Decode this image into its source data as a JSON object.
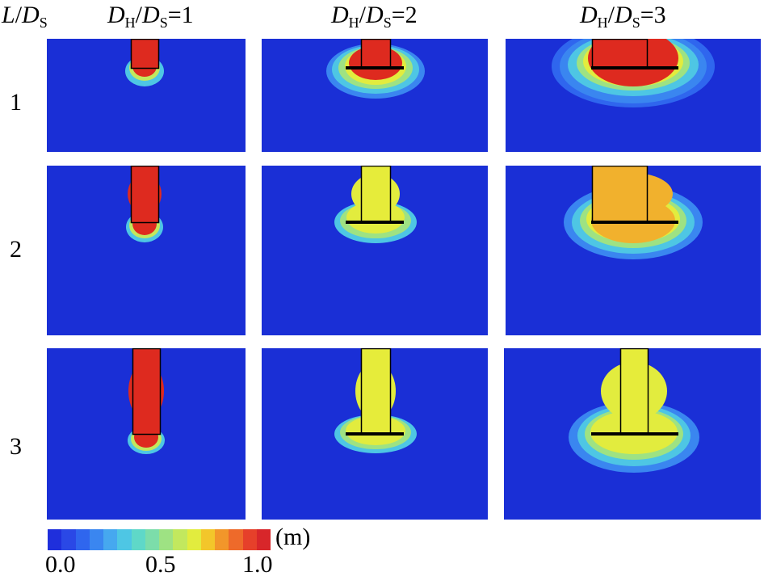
{
  "header": {
    "row_axis": {
      "var": "L",
      "sep": "/",
      "den": "D",
      "sub": "S"
    },
    "cols": [
      {
        "num": "D",
        "num_sub": "H",
        "den": "D",
        "den_sub": "S",
        "eq": "=1"
      },
      {
        "num": "D",
        "num_sub": "H",
        "den": "D",
        "den_sub": "S",
        "eq": "=2"
      },
      {
        "num": "D",
        "num_sub": "H",
        "den": "D",
        "den_sub": "S",
        "eq": "=3"
      }
    ]
  },
  "rows": [
    "1",
    "2",
    "3"
  ],
  "colorbar": {
    "min_label": "0.0",
    "mid_label": "0.5",
    "max_label": "1.0",
    "unit": "(m)",
    "colors": [
      "#1f2fdc",
      "#2a48e6",
      "#2f66ee",
      "#3a86f0",
      "#46a8ef",
      "#4ec6e4",
      "#5fd8c8",
      "#7cddaa",
      "#9ee283",
      "#c2e85e",
      "#e2ec3e",
      "#f3c62a",
      "#f2962a",
      "#ee6a2a",
      "#e6402a",
      "#d8262a"
    ]
  },
  "panels": [
    {
      "row": 0,
      "col": 0,
      "fill": "#de2a1f",
      "halo": 1
    },
    {
      "row": 0,
      "col": 1,
      "fill": "#de2a1f",
      "halo": 2
    },
    {
      "row": 0,
      "col": 2,
      "fill": "#de2a1f",
      "halo": 3
    },
    {
      "row": 1,
      "col": 0,
      "fill": "#de2a1f",
      "halo": 1
    },
    {
      "row": 1,
      "col": 1,
      "fill": "#e6ec3a",
      "halo": 2
    },
    {
      "row": 1,
      "col": 2,
      "fill": "#f1b12d",
      "halo": 3
    },
    {
      "row": 2,
      "col": 0,
      "fill": "#de2a1f",
      "halo": 1
    },
    {
      "row": 2,
      "col": 1,
      "fill": "#e6ec3a",
      "halo": 2
    },
    {
      "row": 2,
      "col": 2,
      "fill": "#e6ec3a",
      "halo": 3
    }
  ]
}
